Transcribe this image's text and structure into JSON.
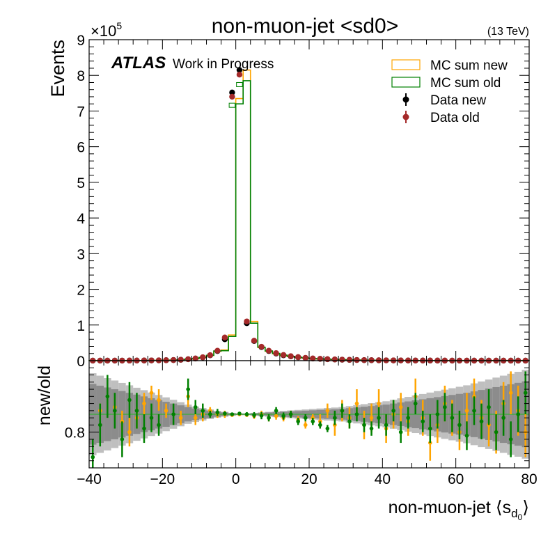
{
  "chart_data": {
    "type": "histogram",
    "title": "non-muon-jet <sd0>",
    "energy_label": "(13 TeV)",
    "atlas_label": "ATLAS",
    "atlas_sublabel": "Work in Progress",
    "xlabel_main": "non-muon-jet ",
    "xlabel_s": "s",
    "xlabel_sub": "d",
    "xlabel_subsub": "0",
    "ylabel": "Events",
    "ratio_ylabel": "new/old",
    "y_multiplier_base": "×10",
    "y_multiplier_exp": "5",
    "xlim": [
      -40,
      80
    ],
    "ylim": [
      0,
      9
    ],
    "ratio_ylim": [
      0.7,
      1.0
    ],
    "x_ticks": [
      "−40",
      "−20",
      "0",
      "20",
      "40",
      "60",
      "80"
    ],
    "y_ticks": [
      "0",
      "1",
      "2",
      "3",
      "4",
      "5",
      "6",
      "7",
      "8",
      "9"
    ],
    "ratio_ticks": [
      "0.8"
    ],
    "legend": [
      {
        "label": "MC sum new",
        "type": "box",
        "color": "#ffa500"
      },
      {
        "label": "MC sum old",
        "type": "box",
        "color": "#008000"
      },
      {
        "label": "Data new",
        "type": "point",
        "color": "#000000"
      },
      {
        "label": "Data old",
        "type": "point",
        "color": "#a52a2a"
      }
    ],
    "bins": {
      "edges_start": -40,
      "width": 2,
      "count": 60,
      "mc_new_peak": [
        {
          "x": -4,
          "y": 0.3
        },
        {
          "x": -2,
          "y": 0.72
        },
        {
          "x": 0,
          "y": 7.35
        },
        {
          "x": 2,
          "y": 8.15
        },
        {
          "x": 4,
          "y": 1.1
        }
      ],
      "mc_old_peak": [
        {
          "x": -4,
          "y": 0.28
        },
        {
          "x": -2,
          "y": 0.68
        },
        {
          "x": 0,
          "y": 7.2
        },
        {
          "x": 2,
          "y": 7.85
        },
        {
          "x": 4,
          "y": 1.05
        }
      ]
    },
    "data_new": [
      [
        -39,
        0.001
      ],
      [
        -37,
        0.001
      ],
      [
        -35,
        0.001
      ],
      [
        -33,
        0.002
      ],
      [
        -31,
        0.002
      ],
      [
        -29,
        0.003
      ],
      [
        -27,
        0.004
      ],
      [
        -25,
        0.005
      ],
      [
        -23,
        0.007
      ],
      [
        -21,
        0.009
      ],
      [
        -19,
        0.012
      ],
      [
        -17,
        0.017
      ],
      [
        -15,
        0.025
      ],
      [
        -13,
        0.04
      ],
      [
        -11,
        0.06
      ],
      [
        -9,
        0.09
      ],
      [
        -7,
        0.15
      ],
      [
        -5,
        0.27
      ],
      [
        -3,
        0.6
      ],
      [
        -1,
        7.52
      ],
      [
        1,
        8.15
      ],
      [
        3,
        1.05
      ],
      [
        5,
        0.55
      ],
      [
        7,
        0.38
      ],
      [
        9,
        0.27
      ],
      [
        11,
        0.2
      ],
      [
        13,
        0.15
      ],
      [
        15,
        0.12
      ],
      [
        17,
        0.095
      ],
      [
        19,
        0.075
      ],
      [
        21,
        0.06
      ],
      [
        23,
        0.05
      ],
      [
        25,
        0.04
      ],
      [
        27,
        0.033
      ],
      [
        29,
        0.027
      ],
      [
        31,
        0.022
      ],
      [
        33,
        0.018
      ],
      [
        35,
        0.015
      ],
      [
        37,
        0.012
      ],
      [
        39,
        0.01
      ],
      [
        41,
        0.008
      ],
      [
        43,
        0.007
      ],
      [
        45,
        0.006
      ],
      [
        47,
        0.005
      ],
      [
        49,
        0.004
      ],
      [
        51,
        0.0035
      ],
      [
        53,
        0.003
      ],
      [
        55,
        0.0025
      ],
      [
        57,
        0.002
      ],
      [
        59,
        0.0018
      ],
      [
        61,
        0.0015
      ],
      [
        63,
        0.0013
      ],
      [
        65,
        0.0011
      ],
      [
        67,
        0.001
      ],
      [
        69,
        0.0009
      ],
      [
        71,
        0.0008
      ],
      [
        73,
        0.0007
      ],
      [
        75,
        0.0006
      ],
      [
        77,
        0.0005
      ],
      [
        79,
        0.0004
      ]
    ],
    "data_old": [
      [
        -39,
        0.001
      ],
      [
        -37,
        0.001
      ],
      [
        -35,
        0.001
      ],
      [
        -33,
        0.002
      ],
      [
        -31,
        0.002
      ],
      [
        -29,
        0.003
      ],
      [
        -27,
        0.004
      ],
      [
        -25,
        0.005
      ],
      [
        -23,
        0.007
      ],
      [
        -21,
        0.009
      ],
      [
        -19,
        0.012
      ],
      [
        -17,
        0.017
      ],
      [
        -15,
        0.026
      ],
      [
        -13,
        0.041
      ],
      [
        -11,
        0.062
      ],
      [
        -9,
        0.095
      ],
      [
        -7,
        0.155
      ],
      [
        -5,
        0.28
      ],
      [
        -3,
        0.65
      ],
      [
        -1,
        7.4
      ],
      [
        1,
        8.02
      ],
      [
        3,
        1.1
      ],
      [
        5,
        0.56
      ],
      [
        7,
        0.39
      ],
      [
        9,
        0.28
      ],
      [
        11,
        0.21
      ],
      [
        13,
        0.16
      ],
      [
        15,
        0.125
      ],
      [
        17,
        0.1
      ],
      [
        19,
        0.078
      ],
      [
        21,
        0.062
      ],
      [
        23,
        0.052
      ],
      [
        25,
        0.042
      ],
      [
        27,
        0.034
      ],
      [
        29,
        0.028
      ],
      [
        31,
        0.023
      ],
      [
        33,
        0.019
      ],
      [
        35,
        0.016
      ],
      [
        37,
        0.013
      ],
      [
        39,
        0.011
      ],
      [
        41,
        0.009
      ],
      [
        43,
        0.0075
      ],
      [
        45,
        0.0065
      ],
      [
        47,
        0.0055
      ],
      [
        49,
        0.0045
      ],
      [
        51,
        0.004
      ],
      [
        53,
        0.0033
      ],
      [
        55,
        0.0028
      ],
      [
        57,
        0.0023
      ],
      [
        59,
        0.002
      ],
      [
        61,
        0.0017
      ],
      [
        63,
        0.0014
      ],
      [
        65,
        0.0012
      ],
      [
        67,
        0.0011
      ],
      [
        69,
        0.001
      ],
      [
        71,
        0.0009
      ],
      [
        73,
        0.0008
      ],
      [
        75,
        0.0007
      ],
      [
        77,
        0.0006
      ],
      [
        79,
        0.0005
      ]
    ],
    "ratio_band": [
      [
        -40,
        0.085
      ],
      [
        -38,
        0.08
      ],
      [
        -36,
        0.075
      ],
      [
        -34,
        0.07
      ],
      [
        -32,
        0.065
      ],
      [
        -30,
        0.06
      ],
      [
        -28,
        0.055
      ],
      [
        -26,
        0.05
      ],
      [
        -24,
        0.045
      ],
      [
        -22,
        0.04
      ],
      [
        -20,
        0.035
      ],
      [
        -18,
        0.03
      ],
      [
        -16,
        0.025
      ],
      [
        -14,
        0.02
      ],
      [
        -12,
        0.016
      ],
      [
        -10,
        0.013
      ],
      [
        -8,
        0.01
      ],
      [
        -6,
        0.007
      ],
      [
        -4,
        0.005
      ],
      [
        -2,
        0.003
      ],
      [
        0,
        0.002
      ],
      [
        2,
        0.002
      ],
      [
        4,
        0.003
      ],
      [
        6,
        0.004
      ],
      [
        8,
        0.005
      ],
      [
        10,
        0.006
      ],
      [
        12,
        0.007
      ],
      [
        14,
        0.008
      ],
      [
        16,
        0.009
      ],
      [
        18,
        0.01
      ],
      [
        20,
        0.011
      ],
      [
        22,
        0.012
      ],
      [
        24,
        0.013
      ],
      [
        26,
        0.014
      ],
      [
        28,
        0.015
      ],
      [
        30,
        0.017
      ],
      [
        32,
        0.019
      ],
      [
        34,
        0.021
      ],
      [
        36,
        0.023
      ],
      [
        38,
        0.025
      ],
      [
        40,
        0.027
      ],
      [
        42,
        0.03
      ],
      [
        44,
        0.033
      ],
      [
        46,
        0.036
      ],
      [
        48,
        0.039
      ],
      [
        50,
        0.042
      ],
      [
        52,
        0.045
      ],
      [
        54,
        0.048
      ],
      [
        56,
        0.051
      ],
      [
        58,
        0.054
      ],
      [
        60,
        0.057
      ],
      [
        62,
        0.06
      ],
      [
        64,
        0.064
      ],
      [
        66,
        0.068
      ],
      [
        68,
        0.072
      ],
      [
        70,
        0.076
      ],
      [
        72,
        0.08
      ],
      [
        74,
        0.084
      ],
      [
        76,
        0.088
      ],
      [
        78,
        0.092
      ]
    ],
    "ratio_points_new": [
      [
        -37,
        0.86,
        0.02
      ],
      [
        -33,
        0.87,
        0.03
      ],
      [
        -31,
        0.83,
        0.03
      ],
      [
        -29,
        0.8,
        0.04
      ],
      [
        -27,
        0.84,
        0.03
      ],
      [
        -25,
        0.88,
        0.03
      ],
      [
        -23,
        0.91,
        0.02
      ],
      [
        -21,
        0.89,
        0.03
      ],
      [
        -19,
        0.86,
        0.02
      ],
      [
        -15,
        0.84,
        0.02
      ],
      [
        -13,
        0.9,
        0.03
      ],
      [
        -11,
        0.84,
        0.02
      ],
      [
        -9,
        0.85,
        0.02
      ],
      [
        -7,
        0.86,
        0.01
      ],
      [
        -5,
        0.85,
        0.01
      ],
      [
        -3,
        0.85,
        0.01
      ],
      [
        -1,
        0.848,
        0.005
      ],
      [
        1,
        0.85,
        0.005
      ],
      [
        3,
        0.848,
        0.005
      ],
      [
        5,
        0.845,
        0.008
      ],
      [
        7,
        0.85,
        0.01
      ],
      [
        9,
        0.84,
        0.01
      ],
      [
        11,
        0.845,
        0.01
      ],
      [
        13,
        0.84,
        0.01
      ],
      [
        15,
        0.85,
        0.01
      ],
      [
        17,
        0.835,
        0.01
      ],
      [
        19,
        0.82,
        0.01
      ],
      [
        21,
        0.84,
        0.01
      ],
      [
        23,
        0.83,
        0.02
      ],
      [
        25,
        0.86,
        0.02
      ],
      [
        27,
        0.82,
        0.03
      ],
      [
        29,
        0.86,
        0.03
      ],
      [
        31,
        0.84,
        0.03
      ],
      [
        33,
        0.88,
        0.04
      ],
      [
        35,
        0.82,
        0.04
      ],
      [
        37,
        0.84,
        0.04
      ],
      [
        39,
        0.88,
        0.04
      ],
      [
        41,
        0.81,
        0.04
      ],
      [
        43,
        0.85,
        0.04
      ],
      [
        45,
        0.87,
        0.04
      ],
      [
        47,
        0.83,
        0.04
      ],
      [
        49,
        0.9,
        0.05
      ],
      [
        51,
        0.84,
        0.05
      ],
      [
        53,
        0.77,
        0.05
      ],
      [
        55,
        0.82,
        0.05
      ],
      [
        57,
        0.88,
        0.05
      ],
      [
        59,
        0.84,
        0.05
      ],
      [
        61,
        0.8,
        0.05
      ],
      [
        63,
        0.86,
        0.05
      ],
      [
        65,
        0.9,
        0.05
      ],
      [
        67,
        0.84,
        0.05
      ],
      [
        69,
        0.82,
        0.06
      ],
      [
        71,
        0.8,
        0.06
      ],
      [
        73,
        0.88,
        0.06
      ],
      [
        75,
        0.91,
        0.06
      ],
      [
        77,
        0.86,
        0.07
      ],
      [
        79,
        0.8,
        0.07
      ]
    ],
    "ratio_points_old": [
      [
        -39,
        0.73,
        0.05
      ],
      [
        -37,
        0.82,
        0.06
      ],
      [
        -35,
        0.9,
        0.06
      ],
      [
        -33,
        0.86,
        0.05
      ],
      [
        -31,
        0.78,
        0.05
      ],
      [
        -29,
        0.89,
        0.05
      ],
      [
        -27,
        0.86,
        0.05
      ],
      [
        -25,
        0.81,
        0.04
      ],
      [
        -23,
        0.84,
        0.04
      ],
      [
        -21,
        0.82,
        0.03
      ],
      [
        -17,
        0.85,
        0.03
      ],
      [
        -13,
        0.92,
        0.03
      ],
      [
        -11,
        0.87,
        0.02
      ],
      [
        -9,
        0.86,
        0.02
      ],
      [
        -7,
        0.85,
        0.01
      ],
      [
        -5,
        0.855,
        0.01
      ],
      [
        -3,
        0.852,
        0.006
      ],
      [
        -1,
        0.85,
        0.004
      ],
      [
        1,
        0.852,
        0.004
      ],
      [
        3,
        0.85,
        0.006
      ],
      [
        5,
        0.848,
        0.008
      ],
      [
        7,
        0.846,
        0.01
      ],
      [
        9,
        0.84,
        0.01
      ],
      [
        11,
        0.86,
        0.01
      ],
      [
        13,
        0.845,
        0.01
      ],
      [
        15,
        0.85,
        0.01
      ],
      [
        17,
        0.83,
        0.01
      ],
      [
        19,
        0.84,
        0.01
      ],
      [
        21,
        0.83,
        0.01
      ],
      [
        23,
        0.82,
        0.01
      ],
      [
        25,
        0.81,
        0.01
      ],
      [
        27,
        0.84,
        0.02
      ],
      [
        29,
        0.86,
        0.02
      ],
      [
        31,
        0.83,
        0.02
      ],
      [
        33,
        0.85,
        0.02
      ],
      [
        35,
        0.82,
        0.02
      ],
      [
        37,
        0.81,
        0.02
      ],
      [
        39,
        0.84,
        0.03
      ],
      [
        41,
        0.82,
        0.03
      ],
      [
        43,
        0.86,
        0.03
      ],
      [
        45,
        0.8,
        0.03
      ],
      [
        47,
        0.84,
        0.03
      ],
      [
        49,
        0.88,
        0.03
      ],
      [
        51,
        0.83,
        0.03
      ],
      [
        53,
        0.81,
        0.04
      ],
      [
        55,
        0.85,
        0.04
      ],
      [
        57,
        0.87,
        0.04
      ],
      [
        59,
        0.84,
        0.04
      ],
      [
        61,
        0.82,
        0.04
      ],
      [
        63,
        0.79,
        0.04
      ],
      [
        65,
        0.86,
        0.04
      ],
      [
        67,
        0.83,
        0.05
      ],
      [
        69,
        0.87,
        0.05
      ],
      [
        71,
        0.8,
        0.05
      ],
      [
        73,
        0.84,
        0.05
      ],
      [
        75,
        0.78,
        0.05
      ],
      [
        77,
        0.85,
        0.05
      ],
      [
        79,
        0.91,
        0.06
      ]
    ],
    "colors": {
      "mc_new": "#ffa500",
      "mc_old": "#008000",
      "data_new": "#000000",
      "data_old": "#a52a2a",
      "band_dark": "#8c8c8c",
      "band_light": "#bfbfbf",
      "ratio_line": "#44aa44"
    }
  }
}
